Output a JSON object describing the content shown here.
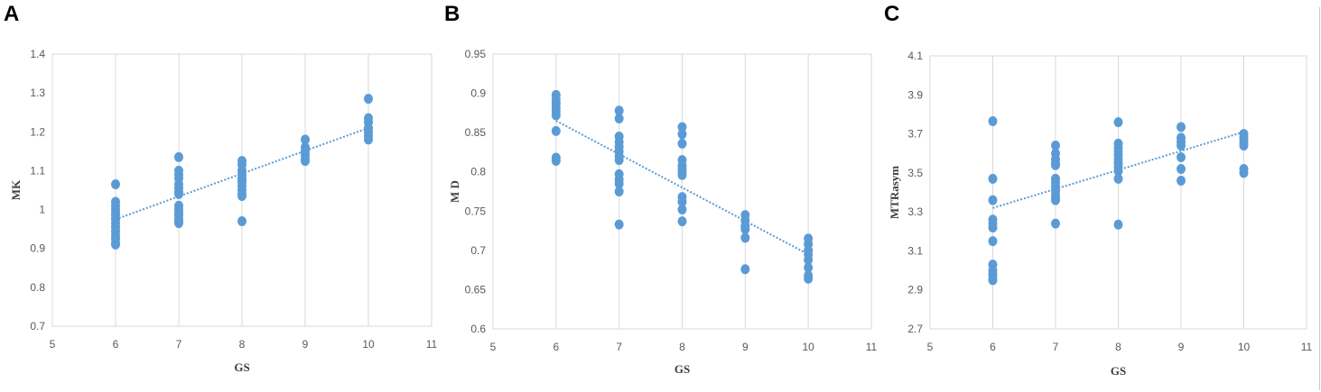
{
  "colors": {
    "marker": "#5b9bd5",
    "trend": "#5b9bd5",
    "grid": "#d9d9d9"
  },
  "chart_data": [
    {
      "panel": "A",
      "type": "scatter",
      "xlabel": "GS",
      "ylabel": "MK",
      "xlim": [
        5,
        11
      ],
      "ylim": [
        0.7,
        1.4
      ],
      "xticks": [
        "5",
        "6",
        "7",
        "8",
        "9",
        "10",
        "11"
      ],
      "yticks": [
        "0.7",
        "0.8",
        "0.9",
        "1",
        "1.1",
        "1.2",
        "1.3",
        "1.4"
      ],
      "yticks_values": [
        0.7,
        0.8,
        0.9,
        1.0,
        1.1,
        1.2,
        1.3,
        1.4
      ],
      "xticks_values": [
        5,
        6,
        7,
        8,
        9,
        10,
        11
      ],
      "grid": "vertical",
      "trendline": {
        "x": [
          6,
          10
        ],
        "y": [
          0.975,
          1.21
        ]
      },
      "points": {
        "x": [
          6,
          6,
          6,
          6,
          6,
          6,
          6,
          6,
          6,
          6,
          6,
          6,
          6,
          6,
          7,
          7,
          7,
          7,
          7,
          7,
          7,
          7,
          7,
          7,
          7,
          7,
          7,
          7,
          7,
          8,
          8,
          8,
          8,
          8,
          8,
          8,
          8,
          8,
          8,
          8,
          8,
          9,
          9,
          9,
          9,
          9,
          9,
          10,
          10,
          10,
          10,
          10,
          10,
          10
        ],
        "y": [
          1.065,
          1.02,
          1.01,
          1.0,
          0.99,
          0.985,
          0.975,
          0.965,
          0.955,
          0.945,
          0.935,
          0.925,
          0.915,
          0.91,
          1.135,
          1.1,
          1.09,
          1.08,
          1.065,
          1.055,
          1.045,
          1.04,
          1.01,
          1.0,
          0.99,
          0.985,
          0.975,
          0.97,
          0.965,
          1.125,
          1.115,
          1.1,
          1.09,
          1.08,
          1.07,
          1.06,
          1.05,
          1.04,
          1.035,
          0.97,
          1.075,
          1.18,
          1.16,
          1.15,
          1.14,
          1.13,
          1.125,
          1.285,
          1.235,
          1.225,
          1.21,
          1.2,
          1.19,
          1.18
        ]
      }
    },
    {
      "panel": "B",
      "type": "scatter",
      "xlabel": "GS",
      "ylabel": "M D",
      "xlim": [
        5,
        11
      ],
      "ylim": [
        0.6,
        0.95
      ],
      "xticks": [
        "5",
        "6",
        "7",
        "8",
        "9",
        "10",
        "11"
      ],
      "yticks": [
        "0.6",
        "0.65",
        "0.7",
        "0.75",
        "0.8",
        "0.85",
        "0.9",
        "0.95"
      ],
      "yticks_values": [
        0.6,
        0.65,
        0.7,
        0.75,
        0.8,
        0.85,
        0.9,
        0.95
      ],
      "xticks_values": [
        5,
        6,
        7,
        8,
        9,
        10,
        11
      ],
      "grid": "vertical",
      "trendline": {
        "x": [
          6,
          10
        ],
        "y": [
          0.865,
          0.695
        ]
      },
      "points": {
        "x": [
          6,
          6,
          6,
          6,
          6,
          6,
          6,
          6,
          6,
          7,
          7,
          7,
          7,
          7,
          7,
          7,
          7,
          7,
          7,
          7,
          7,
          7,
          8,
          8,
          8,
          8,
          8,
          8,
          8,
          8,
          8,
          8,
          8,
          8,
          9,
          9,
          9,
          9,
          9,
          9,
          10,
          10,
          10,
          10,
          10,
          10,
          10,
          10
        ],
        "y": [
          0.898,
          0.892,
          0.887,
          0.882,
          0.877,
          0.872,
          0.852,
          0.818,
          0.814,
          0.878,
          0.868,
          0.845,
          0.838,
          0.832,
          0.826,
          0.82,
          0.815,
          0.797,
          0.79,
          0.785,
          0.775,
          0.733,
          0.857,
          0.848,
          0.836,
          0.815,
          0.808,
          0.804,
          0.8,
          0.796,
          0.768,
          0.762,
          0.752,
          0.737,
          0.745,
          0.738,
          0.731,
          0.727,
          0.716,
          0.676,
          0.715,
          0.708,
          0.7,
          0.695,
          0.688,
          0.678,
          0.668,
          0.664
        ]
      }
    },
    {
      "panel": "C",
      "type": "scatter",
      "xlabel": "GS",
      "ylabel": "MTRasym",
      "xlim": [
        5,
        11
      ],
      "ylim": [
        2.7,
        4.1
      ],
      "xticks": [
        "5",
        "6",
        "7",
        "8",
        "9",
        "10",
        "11"
      ],
      "yticks": [
        "2.7",
        "2.9",
        "3.1",
        "3.3",
        "3.5",
        "3.7",
        "3.9",
        "4.1"
      ],
      "yticks_values": [
        2.7,
        2.9,
        3.1,
        3.3,
        3.5,
        3.7,
        3.9,
        4.1
      ],
      "xticks_values": [
        5,
        6,
        7,
        8,
        9,
        10,
        11
      ],
      "grid": "vertical",
      "trendline": {
        "x": [
          6,
          10
        ],
        "y": [
          3.32,
          3.71
        ]
      },
      "points": {
        "x": [
          6,
          6,
          6,
          6,
          6,
          6,
          6,
          6,
          6,
          6,
          6,
          6,
          7,
          7,
          7,
          7,
          7,
          7,
          7,
          7,
          7,
          7,
          7,
          7,
          7,
          8,
          8,
          8,
          8,
          8,
          8,
          8,
          8,
          8,
          8,
          8,
          9,
          9,
          9,
          9,
          9,
          9,
          9,
          10,
          10,
          10,
          10,
          10,
          10,
          10
        ],
        "y": [
          3.765,
          3.47,
          3.36,
          3.26,
          3.24,
          3.22,
          3.15,
          3.03,
          3.0,
          2.98,
          2.96,
          2.95,
          3.64,
          3.6,
          3.57,
          3.55,
          3.54,
          3.47,
          3.45,
          3.43,
          3.41,
          3.39,
          3.37,
          3.36,
          3.24,
          3.76,
          3.65,
          3.63,
          3.61,
          3.59,
          3.57,
          3.55,
          3.53,
          3.51,
          3.47,
          3.235,
          3.735,
          3.68,
          3.66,
          3.64,
          3.58,
          3.52,
          3.46,
          3.7,
          3.685,
          3.67,
          3.655,
          3.64,
          3.52,
          3.5
        ]
      }
    }
  ]
}
